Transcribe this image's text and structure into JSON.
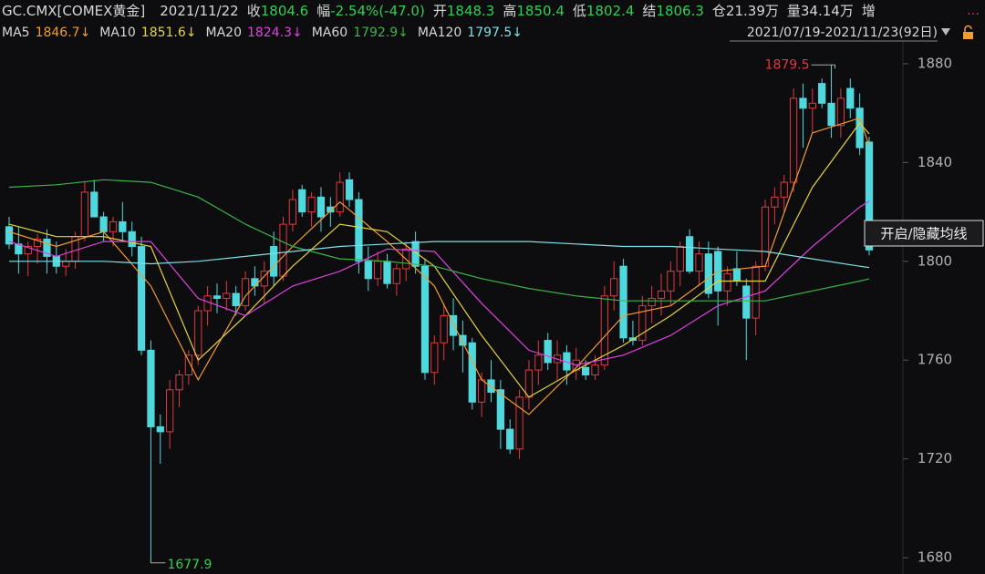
{
  "header": {
    "symbol": "GC.CMX[COMEX黄金]",
    "date": "2021/11/22",
    "quotes": [
      {
        "label": "收",
        "value": "1804.6",
        "color": "#2fcf55"
      },
      {
        "label": "幅",
        "value": "-2.54%(-47.0)",
        "color": "#2fcf55"
      },
      {
        "label": "开",
        "value": "1848.3",
        "color": "#2fcf55"
      },
      {
        "label": "高",
        "value": "1850.4",
        "color": "#2fcf55"
      },
      {
        "label": "低",
        "value": "1802.4",
        "color": "#2fcf55"
      },
      {
        "label": "结",
        "value": "1806.3",
        "color": "#2fcf55"
      },
      {
        "label": "仓",
        "value": "21.39万",
        "color": "#d8d8d8"
      },
      {
        "label": "量",
        "value": "34.14万",
        "color": "#d8d8d8"
      }
    ],
    "trailing": "增",
    "date_range": "2021/07/19-2021/11/23(92日)",
    "tooltip": "开启/隐藏均线"
  },
  "chart_data": {
    "type": "candlestick",
    "up_color": "#e0393e",
    "down_color": "#4fd8de",
    "ylim": [
      1673.4,
      1889.2
    ],
    "yticks": [
      1680,
      1720,
      1760,
      1800,
      1840,
      1880
    ],
    "open": [
      1814,
      1807,
      1803,
      1806,
      1809,
      1802,
      1798,
      1800,
      1810,
      1828,
      1818,
      1812,
      1816,
      1812,
      1806,
      1764,
      1733,
      1731,
      1748,
      1754,
      1762,
      1780,
      1786,
      1785,
      1787,
      1782,
      1793,
      1790,
      1806,
      1794,
      1815,
      1829,
      1820,
      1826,
      1822,
      1820,
      1833,
      1825,
      1800,
      1793,
      1800,
      1791,
      1797,
      1808,
      1798,
      1755,
      1767,
      1778,
      1770,
      1767,
      1743,
      1752,
      1748,
      1732,
      1724,
      1745,
      1756,
      1768,
      1759,
      1763,
      1756,
      1757,
      1754,
      1758,
      1786,
      1798,
      1769,
      1768,
      1782,
      1785,
      1788,
      1796,
      1810,
      1796,
      1803,
      1804,
      1788,
      1797,
      1790,
      1777,
      1798,
      1822,
      1826,
      1832,
      1866,
      1862,
      1872,
      1864,
      1855,
      1870,
      1862,
      1848.3
    ],
    "high": [
      1818,
      1814,
      1808,
      1811,
      1813,
      1808,
      1805,
      1812,
      1832,
      1833,
      1820,
      1818,
      1824,
      1816,
      1810,
      1768,
      1738,
      1752,
      1756,
      1764,
      1782,
      1790,
      1791,
      1792,
      1790,
      1796,
      1798,
      1800,
      1812,
      1818,
      1829,
      1831,
      1828,
      1830,
      1826,
      1836,
      1836,
      1828,
      1806,
      1804,
      1803,
      1799,
      1808,
      1812,
      1801,
      1770,
      1783,
      1785,
      1776,
      1769,
      1755,
      1760,
      1752,
      1736,
      1748,
      1760,
      1768,
      1771,
      1768,
      1766,
      1765,
      1760,
      1762,
      1790,
      1800,
      1801,
      1776,
      1786,
      1790,
      1795,
      1800,
      1808,
      1813,
      1808,
      1808,
      1806,
      1798,
      1804,
      1793,
      1800,
      1825,
      1830,
      1835,
      1870,
      1872,
      1870,
      1874,
      1879.5,
      1870,
      1874,
      1868,
      1850.4
    ],
    "low": [
      1805,
      1795,
      1794,
      1799,
      1795,
      1795,
      1794,
      1797,
      1808,
      1818,
      1808,
      1806,
      1808,
      1802,
      1762,
      1677.9,
      1718,
      1724,
      1741,
      1750,
      1758,
      1774,
      1779,
      1780,
      1778,
      1780,
      1786,
      1783,
      1790,
      1792,
      1812,
      1818,
      1814,
      1812,
      1814,
      1818,
      1822,
      1795,
      1788,
      1790,
      1789,
      1786,
      1792,
      1795,
      1752,
      1750,
      1760,
      1764,
      1755,
      1740,
      1737,
      1743,
      1724,
      1722,
      1720,
      1740,
      1750,
      1756,
      1752,
      1750,
      1752,
      1752,
      1752,
      1756,
      1780,
      1767,
      1766,
      1766,
      1775,
      1778,
      1782,
      1790,
      1795,
      1790,
      1785,
      1774,
      1782,
      1790,
      1760,
      1770,
      1796,
      1815,
      1820,
      1828,
      1846,
      1852,
      1862,
      1850,
      1850,
      1858,
      1843,
      1802.4
    ],
    "close": [
      1807,
      1803,
      1806,
      1809,
      1802,
      1798,
      1800,
      1810,
      1828,
      1818,
      1812,
      1816,
      1812,
      1806,
      1764,
      1733,
      1731,
      1748,
      1754,
      1762,
      1780,
      1786,
      1785,
      1787,
      1782,
      1793,
      1790,
      1796,
      1794,
      1815,
      1825,
      1820,
      1826,
      1818,
      1820,
      1832,
      1825,
      1800,
      1793,
      1800,
      1791,
      1797,
      1805,
      1798,
      1755,
      1767,
      1778,
      1770,
      1766,
      1743,
      1752,
      1747,
      1732,
      1724,
      1745,
      1756,
      1762,
      1759,
      1762,
      1756,
      1760,
      1754,
      1758,
      1786,
      1793,
      1769,
      1768,
      1782,
      1785,
      1788,
      1796,
      1806,
      1796,
      1803,
      1787,
      1788,
      1795,
      1792,
      1777,
      1798,
      1822,
      1826,
      1832,
      1866,
      1862,
      1864,
      1864,
      1855,
      1866,
      1862,
      1846,
      1804.6
    ],
    "ma_series": [
      {
        "name": "MA5",
        "label": "1846.7↓",
        "color": "#f39c2e",
        "x": [
          0,
          5,
          10,
          15,
          20,
          25,
          30,
          35,
          40,
          45,
          50,
          55,
          60,
          65,
          70,
          75,
          80,
          85,
          90,
          91
        ],
        "values": [
          1812,
          1806,
          1812,
          1790,
          1752,
          1786,
          1806,
          1824,
          1808,
          1790,
          1752,
          1738,
          1757,
          1778,
          1782,
          1796,
          1798,
          1852,
          1858,
          1846.7
        ]
      },
      {
        "name": "MA10",
        "label": "1851.6↓",
        "color": "#e6d23a",
        "x": [
          0,
          5,
          10,
          15,
          20,
          25,
          30,
          35,
          40,
          45,
          50,
          55,
          60,
          65,
          70,
          75,
          80,
          85,
          90,
          91
        ],
        "values": [
          1815,
          1810,
          1810,
          1806,
          1760,
          1778,
          1798,
          1815,
          1812,
          1798,
          1770,
          1745,
          1756,
          1766,
          1778,
          1792,
          1792,
          1830,
          1856,
          1851.6
        ]
      },
      {
        "name": "MA20",
        "label": "1824.3↓",
        "color": "#e040e0",
        "x": [
          0,
          5,
          10,
          15,
          20,
          25,
          30,
          35,
          40,
          45,
          50,
          55,
          60,
          65,
          70,
          75,
          80,
          85,
          90,
          91
        ],
        "values": [
          1808,
          1802,
          1808,
          1808,
          1785,
          1778,
          1790,
          1796,
          1805,
          1804,
          1783,
          1764,
          1758,
          1762,
          1770,
          1782,
          1788,
          1806,
          1822,
          1824.3
        ]
      },
      {
        "name": "MA60",
        "label": "1792.9↓",
        "color": "#3bb34a",
        "x": [
          0,
          5,
          10,
          15,
          20,
          25,
          30,
          35,
          40,
          45,
          50,
          55,
          60,
          65,
          70,
          75,
          80,
          85,
          90,
          91
        ],
        "values": [
          1830,
          1831,
          1833,
          1832,
          1826,
          1815,
          1806,
          1801,
          1800,
          1798,
          1793,
          1789,
          1786,
          1784,
          1784,
          1784,
          1784,
          1788,
          1792,
          1792.9
        ]
      },
      {
        "name": "MA120",
        "label": "1797.5↓",
        "color": "#7fe0e6",
        "x": [
          0,
          5,
          10,
          15,
          20,
          25,
          30,
          35,
          40,
          45,
          50,
          55,
          60,
          65,
          70,
          75,
          80,
          85,
          90,
          91
        ],
        "values": [
          1800,
          1800,
          1800,
          1799,
          1800,
          1802,
          1804,
          1806,
          1807,
          1808,
          1808,
          1808,
          1807,
          1806,
          1806,
          1805,
          1804,
          1801,
          1798,
          1797.5
        ]
      }
    ],
    "annotations": [
      {
        "x": 87,
        "y": 1879.5,
        "color": "#e0393e",
        "side": "left"
      },
      {
        "x": 15,
        "y": 1677.9,
        "color": "#2fcf55",
        "side": "right"
      }
    ]
  }
}
